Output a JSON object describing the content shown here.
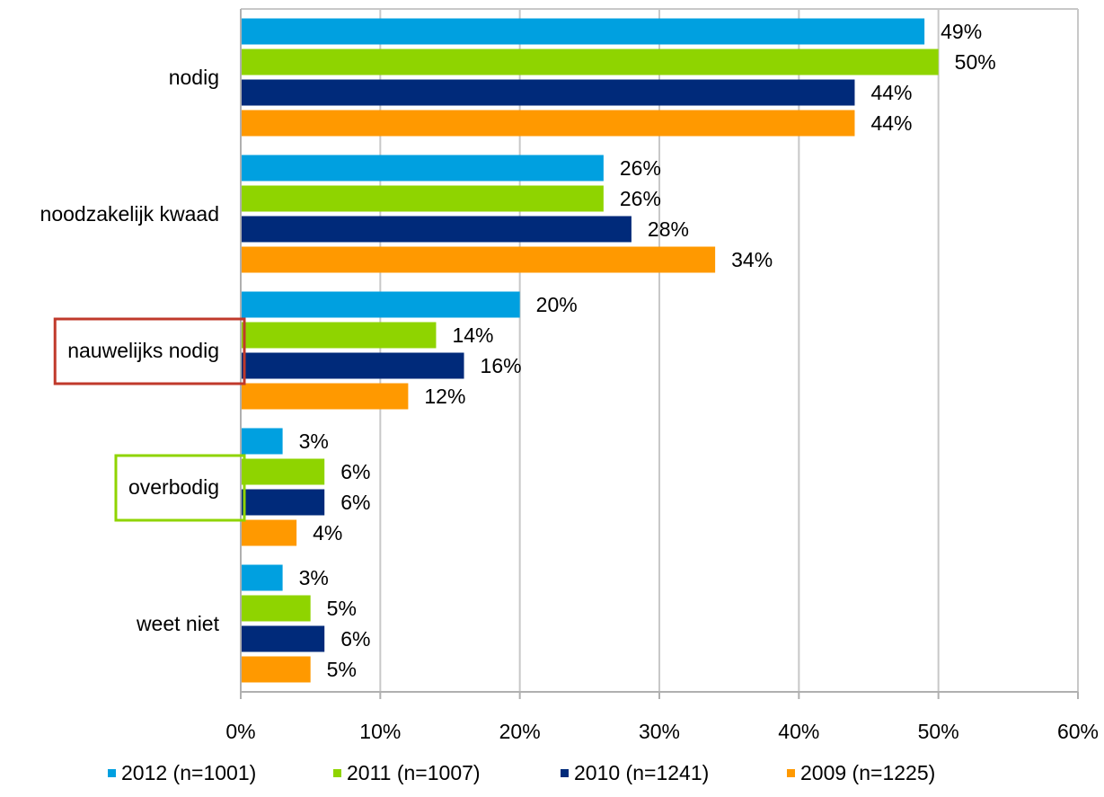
{
  "chart_data": {
    "type": "bar",
    "orientation": "horizontal",
    "title": "",
    "xlabel": "",
    "ylabel": "",
    "xlim": [
      0,
      60
    ],
    "x_ticks": [
      "0%",
      "10%",
      "20%",
      "30%",
      "40%",
      "50%",
      "60%"
    ],
    "grid": true,
    "legend_position": "bottom",
    "categories": [
      "nodig",
      "noodzakelijk kwaad",
      "nauwelijks nodig",
      "overbodig",
      "weet niet"
    ],
    "highlighted_categories": [
      {
        "category": "nauwelijks nodig",
        "color": "#c0392b"
      },
      {
        "category": "overbodig",
        "color": "#8fd400"
      }
    ],
    "series": [
      {
        "name": "2012 (n=1001)",
        "color": "#00a0e0",
        "values": [
          49,
          26,
          20,
          3,
          3
        ],
        "labels": [
          "49%",
          "26%",
          "20%",
          "3%",
          "3%"
        ]
      },
      {
        "name": "2011 (n=1007)",
        "color": "#8fd400",
        "values": [
          50,
          26,
          14,
          6,
          5
        ],
        "labels": [
          "50%",
          "26%",
          "14%",
          "6%",
          "5%"
        ]
      },
      {
        "name": "2010 (n=1241)",
        "color": "#002a7a",
        "values": [
          44,
          28,
          16,
          6,
          6
        ],
        "labels": [
          "44%",
          "28%",
          "16%",
          "6%",
          "6%"
        ]
      },
      {
        "name": "2009 (n=1225)",
        "color": "#ff9900",
        "values": [
          44,
          34,
          12,
          4,
          5
        ],
        "labels": [
          "44%",
          "34%",
          "12%",
          "4%",
          "5%"
        ]
      }
    ]
  }
}
